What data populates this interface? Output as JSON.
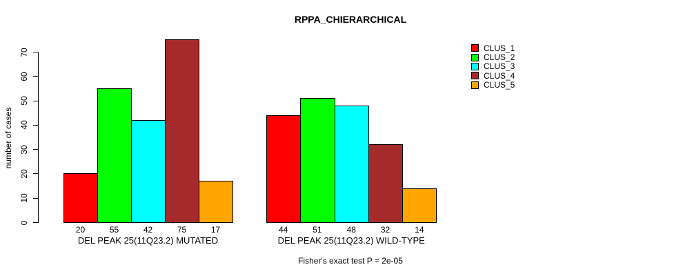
{
  "chart_data": {
    "type": "bar",
    "title": "RPPA_CHIERARCHICAL",
    "ylabel": "number of cases",
    "ylim": [
      0,
      70
    ],
    "yticks": [
      0,
      10,
      20,
      30,
      40,
      50,
      60,
      70
    ],
    "grid": false,
    "series_names": [
      "CLUS_1",
      "CLUS_2",
      "CLUS_3",
      "CLUS_4",
      "CLUS_5"
    ],
    "series_colors": [
      "#FF0000",
      "#00FF00",
      "#00FFFF",
      "#A52A2A",
      "#FFA500"
    ],
    "groups": [
      {
        "label": "DEL PEAK 25(11Q23.2) MUTATED",
        "values": [
          20,
          55,
          42,
          75,
          17
        ]
      },
      {
        "label": "DEL PEAK 25(11Q23.2) WILD-TYPE",
        "values": [
          44,
          51,
          48,
          32,
          14
        ]
      }
    ],
    "legend": {
      "position": "right",
      "entries": [
        {
          "label": "CLUS_1",
          "color": "#FF0000"
        },
        {
          "label": "CLUS_2",
          "color": "#00FF00"
        },
        {
          "label": "CLUS_3",
          "color": "#00FFFF"
        },
        {
          "label": "CLUS_4",
          "color": "#A52A2A"
        },
        {
          "label": "CLUS_5",
          "color": "#FFA500"
        }
      ]
    },
    "annotation": "Fisher's exact test P = 2e-05"
  }
}
